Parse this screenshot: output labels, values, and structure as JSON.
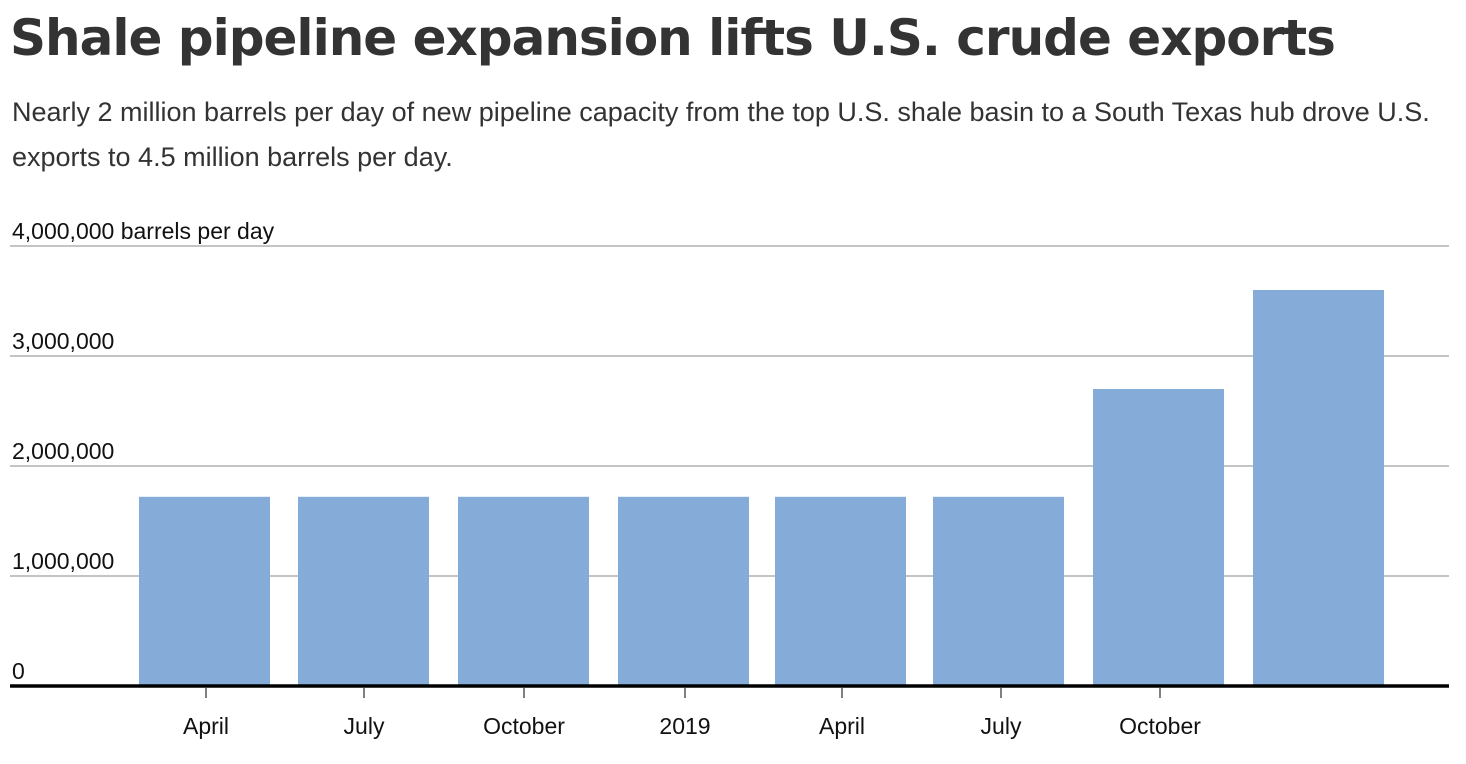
{
  "header": {
    "title": "Shale pipeline expansion lifts U.S. crude exports",
    "subtitle": "Nearly 2 million barrels per day of new pipeline capacity from the top U.S. shale basin to a South Texas hub drove U.S. exports to 4.5 million barrels per day."
  },
  "colors": {
    "bar": "#85acd8",
    "gridline": "#b0b0b0",
    "baseline": "#000000",
    "text": "#333333"
  },
  "chart_data": {
    "type": "bar",
    "title": "Shale pipeline expansion lifts U.S. crude exports",
    "ylabel": "barrels per day",
    "xlabel": "",
    "ylim": [
      0,
      4000000
    ],
    "grid": true,
    "y_ticks": [
      0,
      1000000,
      2000000,
      3000000,
      4000000
    ],
    "y_tick_labels": [
      "0",
      "1,000,000",
      "2,000,000",
      "3,000,000",
      "4,000,000 barrels per day"
    ],
    "x_tick_labels": [
      "April",
      "July",
      "October",
      "2019",
      "April",
      "July",
      "October"
    ],
    "series": [
      {
        "name": "U.S. crude exports",
        "values": [
          1720000,
          1720000,
          1720000,
          1720000,
          1720000,
          1720000,
          2700000,
          3600000
        ]
      }
    ]
  }
}
